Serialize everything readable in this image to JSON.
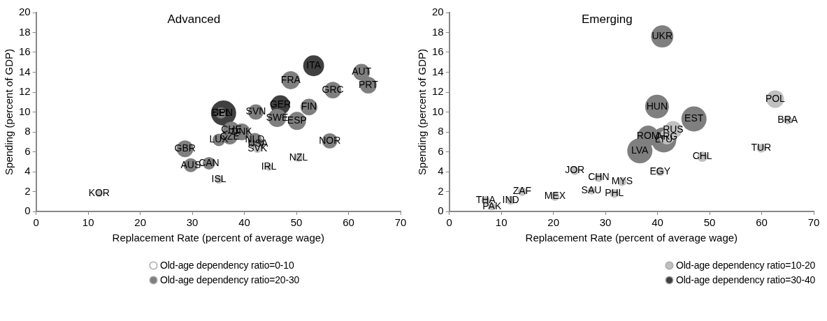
{
  "chart_data": [
    {
      "type": "bubble",
      "title": "Advanced",
      "xlabel": "Replacement Rate (percent of average wage)",
      "ylabel": "Spending (percent of GDP)",
      "xlim": [
        0,
        70
      ],
      "xticks": [
        0,
        10,
        20,
        30,
        40,
        50,
        60,
        70
      ],
      "ylim": [
        0,
        20
      ],
      "yticks": [
        0,
        2,
        4,
        6,
        8,
        10,
        12,
        14,
        16,
        18,
        20
      ],
      "grid": false,
      "legend": "bottom",
      "series": [
        {
          "name": "Old-age dependency ratio=0-10",
          "color": "#ffffff"
        },
        {
          "name": "Old-age dependency ratio=10-20",
          "color": "#c0c0c0",
          "x": [
            12.1,
            35.1,
            44.7,
            50.4,
            42.5
          ],
          "values": [
            1.8,
            3.2,
            4.45,
            5.4,
            6.3
          ],
          "sizes": [
            0.08,
            0.11,
            0.08,
            0.11,
            0.11
          ]
        },
        {
          "name": "Old-age dependency ratio=20-30",
          "color": "#7f7f7f",
          "x": [
            48.9,
            57.0,
            62.5,
            63.8,
            52.4,
            42.2,
            35.5,
            46.3,
            50.1,
            37.5,
            39.5,
            35.1,
            37.2,
            42.0,
            42.6,
            56.4,
            28.6,
            29.7,
            33.2
          ],
          "values": [
            13.2,
            12.2,
            14.0,
            12.7,
            10.5,
            10.0,
            9.9,
            9.4,
            9.1,
            8.2,
            8.0,
            7.2,
            7.5,
            7.2,
            6.8,
            7.1,
            6.3,
            4.65,
            4.85
          ],
          "sizes": [
            0.52,
            0.44,
            0.44,
            0.44,
            0.44,
            0.37,
            0.2,
            0.52,
            0.52,
            0.44,
            0.44,
            0.25,
            0.37,
            0.31,
            0.25,
            0.37,
            0.44,
            0.31,
            0.25
          ]
        },
        {
          "name": "Old-age dependency ratio=30-40",
          "color": "#404040",
          "x": [
            53.3,
            36.0,
            46.9
          ],
          "values": [
            14.65,
            9.9,
            10.7
          ],
          "sizes": [
            0.69,
            1,
            0.6
          ]
        }
      ],
      "annotations": [
        {
          "text": "KOR",
          "x": 12.1,
          "y": 1.8
        },
        {
          "text": "ISL",
          "x": 35.1,
          "y": 3.2
        },
        {
          "text": "IRL",
          "x": 44.7,
          "y": 4.45
        },
        {
          "text": "NZL",
          "x": 50.4,
          "y": 5.4
        },
        {
          "text": "SVK",
          "x": 42.5,
          "y": 6.3
        },
        {
          "text": "FRA",
          "x": 48.9,
          "y": 13.2
        },
        {
          "text": "GRC",
          "x": 57.0,
          "y": 12.2
        },
        {
          "text": "AUT",
          "x": 62.5,
          "y": 14.0
        },
        {
          "text": "PRT",
          "x": 63.8,
          "y": 12.7
        },
        {
          "text": "FIN",
          "x": 52.4,
          "y": 10.5
        },
        {
          "text": "SVN",
          "x": 42.2,
          "y": 10.0
        },
        {
          "text": "BEL",
          "x": 35.5,
          "y": 9.9
        },
        {
          "text": "SWE",
          "x": 46.3,
          "y": 9.4
        },
        {
          "text": "ESP",
          "x": 50.1,
          "y": 9.1
        },
        {
          "text": "CHE",
          "x": 37.5,
          "y": 8.2
        },
        {
          "text": "DNK",
          "x": 39.5,
          "y": 8.0
        },
        {
          "text": "LUX",
          "x": 35.1,
          "y": 7.2
        },
        {
          "text": "CZE",
          "x": 37.2,
          "y": 7.5
        },
        {
          "text": "NLD",
          "x": 42.0,
          "y": 7.2
        },
        {
          "text": "USA",
          "x": 42.6,
          "y": 6.8
        },
        {
          "text": "NOR",
          "x": 56.4,
          "y": 7.1
        },
        {
          "text": "GBR",
          "x": 28.6,
          "y": 6.3
        },
        {
          "text": "AUS",
          "x": 29.7,
          "y": 4.65
        },
        {
          "text": "CAN",
          "x": 33.2,
          "y": 4.85
        },
        {
          "text": "ITA",
          "x": 53.3,
          "y": 14.65
        },
        {
          "text": "JPN",
          "x": 36.0,
          "y": 9.9
        },
        {
          "text": "GER",
          "x": 46.9,
          "y": 10.7
        }
      ]
    },
    {
      "type": "bubble",
      "title": "Emerging",
      "xlabel": "Replacement Rate (percent of average wage)",
      "ylabel": "Spending (percent of GDP)",
      "xlim": [
        0,
        70
      ],
      "xticks": [
        0,
        10,
        20,
        30,
        40,
        50,
        60,
        70
      ],
      "ylim": [
        0,
        20
      ],
      "yticks": [
        0,
        2,
        4,
        6,
        8,
        10,
        12,
        14,
        16,
        18,
        20
      ],
      "grid": false,
      "series": [
        {
          "color": "#c0c0c0",
          "x": [
            43.0,
            41.8,
            62.6,
            65.0,
            59.9,
            48.6,
            40.5,
            24.1,
            28.7,
            33.2,
            27.3,
            31.7,
            20.3,
            14.0,
            7.0,
            11.8,
            8.2
          ],
          "values": [
            8.2,
            7.5,
            11.3,
            9.2,
            6.35,
            5.5,
            4.0,
            4.1,
            3.4,
            3.0,
            2.1,
            1.8,
            1.5,
            2.0,
            1.1,
            1.1,
            0.5
          ],
          "sizes": [
            0.49,
            0.35,
            0.49,
            0.12,
            0.12,
            0.17,
            0.12,
            0.12,
            0.12,
            0.12,
            0.09,
            0.12,
            0.12,
            0.12,
            0.12,
            0.12,
            0.09
          ]
        },
        {
          "color": "#7f7f7f",
          "x": [
            40.9,
            39.9,
            47.0,
            36.6,
            38.2,
            41.2
          ],
          "values": [
            17.6,
            10.55,
            9.3,
            6.1,
            7.6,
            7.2
          ],
          "sizes": [
            0.78,
            0.89,
            1,
            1,
            0.67,
            1
          ]
        }
      ],
      "annotations": [
        {
          "text": "RUS",
          "x": 43.0,
          "y": 8.2
        },
        {
          "text": "ARG",
          "x": 41.8,
          "y": 7.5
        },
        {
          "text": "POL",
          "x": 62.6,
          "y": 11.3
        },
        {
          "text": "BRA",
          "x": 65.0,
          "y": 9.2
        },
        {
          "text": "TUR",
          "x": 59.9,
          "y": 6.35
        },
        {
          "text": "CHL",
          "x": 48.6,
          "y": 5.5
        },
        {
          "text": "EGY",
          "x": 40.5,
          "y": 4.0
        },
        {
          "text": "JOR",
          "x": 24.1,
          "y": 4.1
        },
        {
          "text": "CHN",
          "x": 28.7,
          "y": 3.4
        },
        {
          "text": "MYS",
          "x": 33.2,
          "y": 3.0
        },
        {
          "text": "SAU",
          "x": 27.3,
          "y": 2.1
        },
        {
          "text": "PHL",
          "x": 31.7,
          "y": 1.8
        },
        {
          "text": "MEX",
          "x": 20.3,
          "y": 1.5
        },
        {
          "text": "ZAF",
          "x": 14.0,
          "y": 2.0
        },
        {
          "text": "THA",
          "x": 7.0,
          "y": 1.1
        },
        {
          "text": "IND",
          "x": 11.8,
          "y": 1.1
        },
        {
          "text": "PAK",
          "x": 8.2,
          "y": 0.5
        },
        {
          "text": "UKR",
          "x": 40.9,
          "y": 17.6
        },
        {
          "text": "HUN",
          "x": 39.9,
          "y": 10.55
        },
        {
          "text": "EST",
          "x": 47.0,
          "y": 9.3
        },
        {
          "text": "LVA",
          "x": 36.6,
          "y": 6.1
        },
        {
          "text": "ROM",
          "x": 38.2,
          "y": 7.6
        },
        {
          "text": "LTU",
          "x": 41.2,
          "y": 7.2
        }
      ]
    }
  ]
}
